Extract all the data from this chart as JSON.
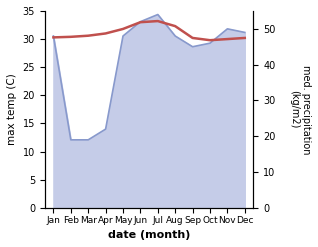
{
  "months": [
    0,
    1,
    2,
    3,
    4,
    5,
    6,
    7,
    8,
    9,
    10,
    11
  ],
  "month_labels": [
    "Jan",
    "Feb",
    "Mar",
    "Apr",
    "May",
    "Jun",
    "Jul",
    "Aug",
    "Sep",
    "Oct",
    "Nov",
    "Dec"
  ],
  "max_temp": [
    30.3,
    30.4,
    30.6,
    31.0,
    31.8,
    33.0,
    33.2,
    32.3,
    30.2,
    29.8,
    30.0,
    30.2
  ],
  "precipitation": [
    48,
    19,
    19,
    22,
    48,
    52,
    54,
    48,
    45,
    46,
    50,
    49
  ],
  "temp_color": "#c0504d",
  "precip_line_color": "#8899cc",
  "precip_fill_color": "#c5cce8",
  "temp_ylim": [
    0,
    35
  ],
  "precip_ylim": [
    0,
    55
  ],
  "xlabel": "date (month)",
  "ylabel_left": "max temp (C)",
  "ylabel_right": "med. precipitation\n(kg/m2)",
  "temp_yticks": [
    0,
    5,
    10,
    15,
    20,
    25,
    30,
    35
  ],
  "precip_yticks": [
    0,
    10,
    20,
    30,
    40,
    50
  ],
  "background_color": "#ffffff",
  "xlim": [
    -0.5,
    11.5
  ]
}
